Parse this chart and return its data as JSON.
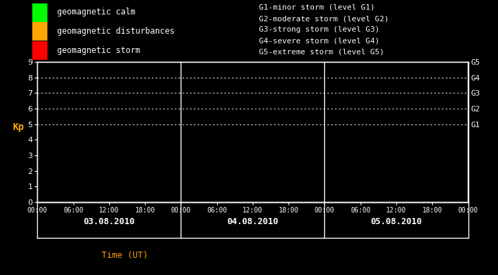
{
  "bg_color": "#000000",
  "text_color": "#ffffff",
  "orange_color": "#ffa500",
  "ylabel": "Kp",
  "xlabel": "Time (UT)",
  "ylim": [
    0,
    9
  ],
  "yticks": [
    0,
    1,
    2,
    3,
    4,
    5,
    6,
    7,
    8,
    9
  ],
  "days": [
    "03.08.2010",
    "04.08.2010",
    "05.08.2010"
  ],
  "time_labels": [
    "00:00",
    "06:00",
    "12:00",
    "18:00",
    "00:00",
    "06:00",
    "12:00",
    "18:00",
    "00:00",
    "06:00",
    "12:00",
    "18:00",
    "00:00"
  ],
  "legend_left": [
    {
      "color": "#00ff00",
      "label": "geomagnetic calm"
    },
    {
      "color": "#ffa500",
      "label": "geomagnetic disturbances"
    },
    {
      "color": "#ff0000",
      "label": "geomagnetic storm"
    }
  ],
  "legend_right": [
    "G1-minor storm (level G1)",
    "G2-moderate storm (level G2)",
    "G3-strong storm (level G3)",
    "G4-severe storm (level G4)",
    "G5-extreme storm (level G5)"
  ],
  "right_labels": [
    "G5",
    "G4",
    "G3",
    "G2",
    "G1"
  ],
  "right_label_yvals": [
    9,
    8,
    7,
    6,
    5
  ],
  "dotted_yvals": [
    5,
    6,
    7,
    8,
    9
  ],
  "day_dividers": [
    24,
    48
  ],
  "total_hours": 72,
  "figsize": [
    7.25,
    4.0
  ],
  "dpi": 100
}
